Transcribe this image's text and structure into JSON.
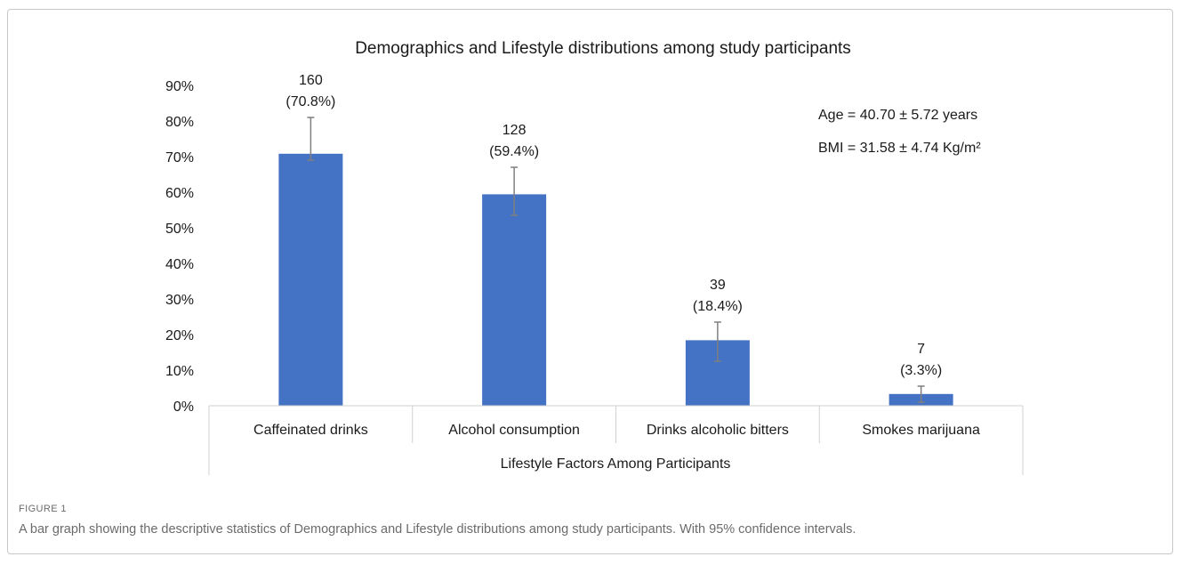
{
  "chart_data": {
    "type": "bar",
    "title": "Demographics and Lifestyle distributions among study participants",
    "xlabel": "Lifestyle Factors Among Participants",
    "ylabel": "",
    "ylim": [
      0,
      90
    ],
    "yticks": [
      "0%",
      "10%",
      "20%",
      "30%",
      "40%",
      "50%",
      "60%",
      "70%",
      "80%",
      "90%"
    ],
    "categories": [
      "Caffeinated drinks",
      "Alcohol consumption",
      "Drinks alcoholic bitters",
      "Smokes marijuana"
    ],
    "values": [
      70.8,
      59.4,
      18.4,
      3.3
    ],
    "error_low": [
      69,
      53.5,
      12.5,
      1
    ],
    "error_high": [
      81,
      67,
      23.5,
      5.5
    ],
    "data_labels": [
      {
        "count": "160",
        "pct": "(70.8%)"
      },
      {
        "count": "128",
        "pct": "(59.4%)"
      },
      {
        "count": "39",
        "pct": "(18.4%)"
      },
      {
        "count": "7",
        "pct": "(3.3%)"
      }
    ],
    "annotations": [
      "Age = 40.70 ± 5.72 years",
      "BMI = 31.58 ± 4.74 Kg/m²"
    ],
    "grid": false,
    "bar_color": "#4472c4"
  },
  "caption": {
    "label": "FIGURE 1",
    "text": "A bar graph showing the descriptive statistics of Demographics and Lifestyle distributions among study participants. With 95% confidence intervals."
  }
}
